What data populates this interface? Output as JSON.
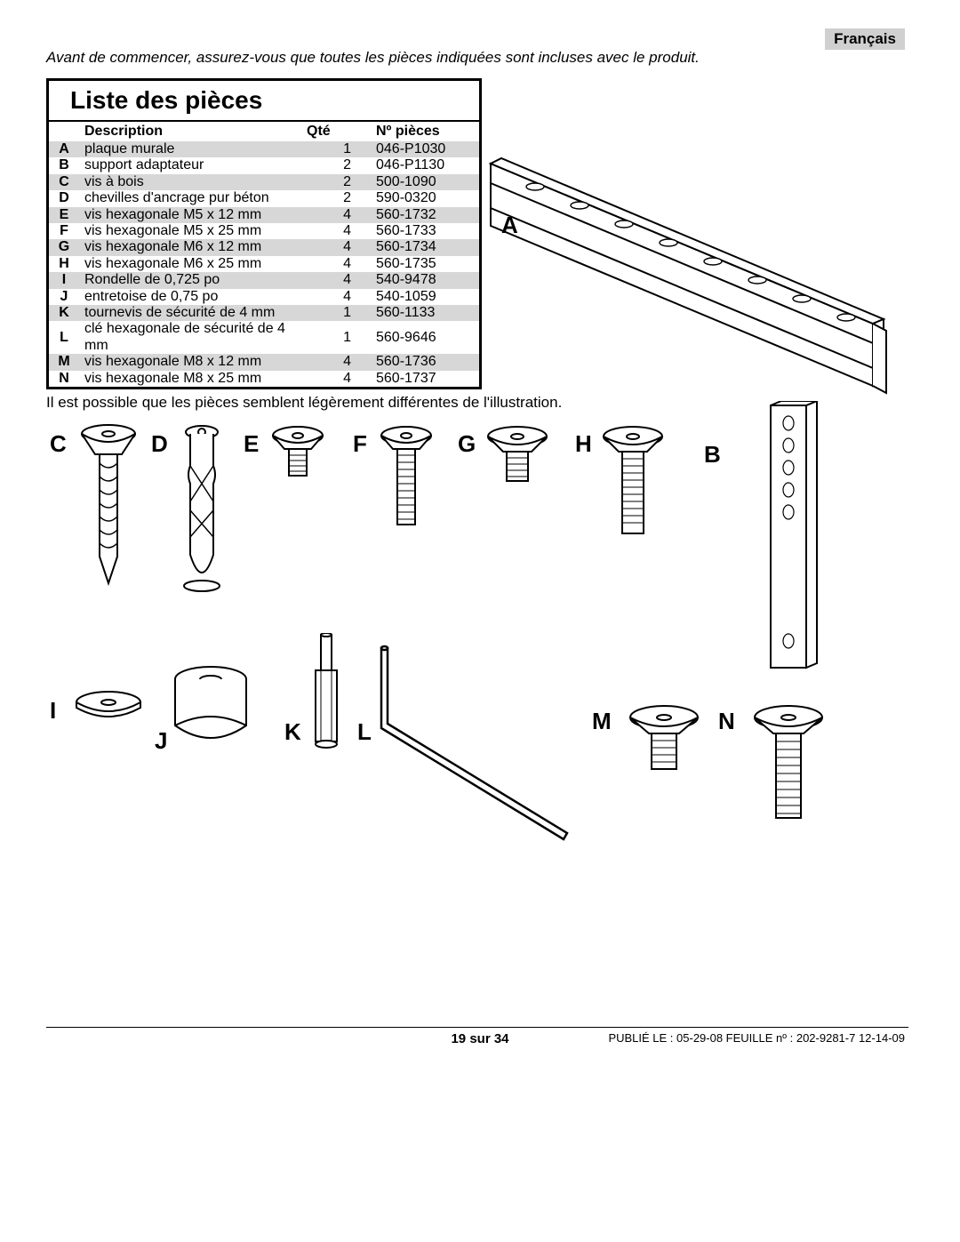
{
  "language_tag": "Français",
  "intro_text": "Avant de commencer, assurez-vous que toutes les pièces indiquées sont incluses avec le produit.",
  "table": {
    "title": "Liste des pièces",
    "headers": {
      "desc": "Description",
      "qty": "Qté",
      "partno": "Nº pièces"
    },
    "rows": [
      {
        "letter": "A",
        "desc": "plaque murale",
        "qty": "1",
        "partno": "046-P1030",
        "shaded": true
      },
      {
        "letter": "B",
        "desc": "support adaptateur",
        "qty": "2",
        "partno": "046-P1130",
        "shaded": false
      },
      {
        "letter": "C",
        "desc": "vis à bois",
        "qty": "2",
        "partno": "500-1090",
        "shaded": true
      },
      {
        "letter": "D",
        "desc": "chevilles d'ancrage pur béton",
        "qty": "2",
        "partno": "590-0320",
        "shaded": false
      },
      {
        "letter": "E",
        "desc": "vis hexagonale M5 x 12 mm",
        "qty": "4",
        "partno": "560-1732",
        "shaded": true
      },
      {
        "letter": "F",
        "desc": "vis hexagonale M5 x 25 mm",
        "qty": "4",
        "partno": "560-1733",
        "shaded": false
      },
      {
        "letter": "G",
        "desc": "vis hexagonale M6 x 12 mm",
        "qty": "4",
        "partno": "560-1734",
        "shaded": true
      },
      {
        "letter": "H",
        "desc": "vis hexagonale M6 x 25 mm",
        "qty": "4",
        "partno": "560-1735",
        "shaded": false
      },
      {
        "letter": "I",
        "desc": "Rondelle de 0,725 po",
        "qty": "4",
        "partno": "540-9478",
        "shaded": true
      },
      {
        "letter": "J",
        "desc": "entretoise de 0,75 po",
        "qty": "4",
        "partno": "540-1059",
        "shaded": false
      },
      {
        "letter": "K",
        "desc": "tournevis de sécurité de 4 mm",
        "qty": "1",
        "partno": "560-1133",
        "shaded": true
      },
      {
        "letter": "L",
        "desc": "clé hexagonale de sécurité de 4 mm",
        "qty": "1",
        "partno": "560-9646",
        "shaded": false
      },
      {
        "letter": "M",
        "desc": "vis hexagonale M8 x 12 mm",
        "qty": "4",
        "partno": "560-1736",
        "shaded": true
      },
      {
        "letter": "N",
        "desc": "vis hexagonale M8 x 25 mm",
        "qty": "4",
        "partno": "560-1737",
        "shaded": false
      }
    ]
  },
  "footnote": "Il est possible que les pièces semblent légèrement différentes de l'illustration.",
  "part_labels": {
    "A": "A",
    "B": "B",
    "C": "C",
    "D": "D",
    "E": "E",
    "F": "F",
    "G": "G",
    "H": "H",
    "I": "I",
    "J": "J",
    "K": "K",
    "L": "L",
    "M": "M",
    "N": "N"
  },
  "footer": {
    "page": "19 sur 34",
    "published": "PUBLIÉ LE : 05-29-08  FEUILLE nº : 202-9281-7   12-14-09"
  },
  "colors": {
    "background": "#ffffff",
    "text": "#000000",
    "shade": "#d7d7d7",
    "lang_tag_bg": "#d0d0d0"
  }
}
